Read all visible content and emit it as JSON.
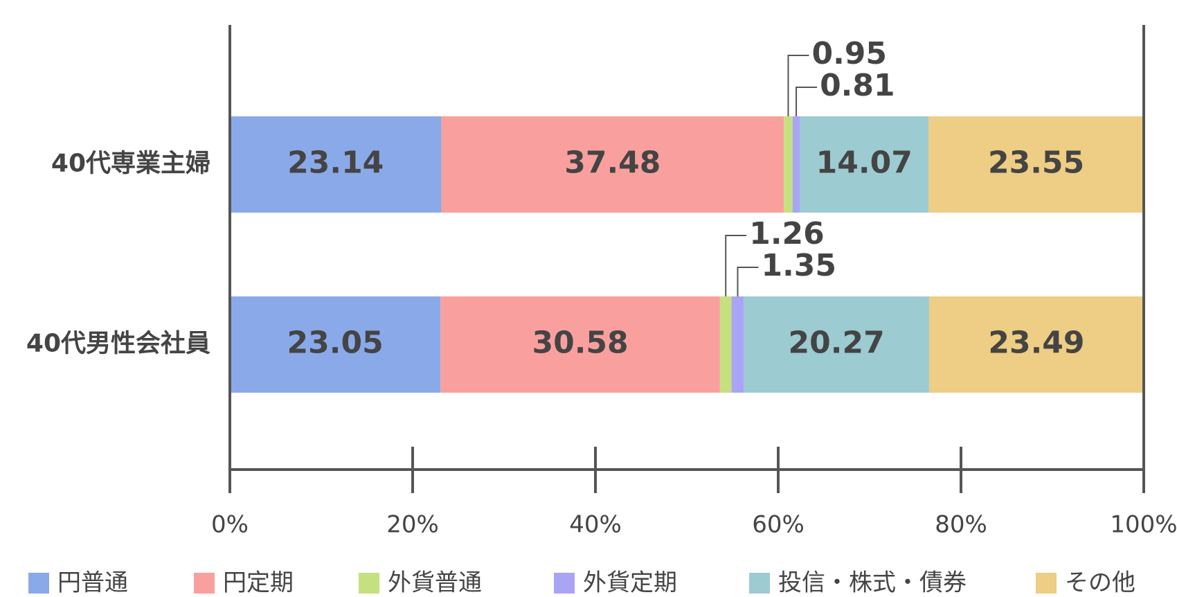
{
  "chart_data": {
    "type": "stacked-bar-horizontal",
    "categories": [
      "40代専業主婦",
      "40代男性会社員"
    ],
    "series": [
      {
        "name": "円普通",
        "color": "#8aa9e8",
        "values": [
          23.14,
          23.05
        ]
      },
      {
        "name": "円定期",
        "color": "#f9a09e",
        "values": [
          37.48,
          30.58
        ]
      },
      {
        "name": "外貨普通",
        "color": "#c5e07f",
        "values": [
          0.95,
          1.26
        ]
      },
      {
        "name": "外貨定期",
        "color": "#aaa4f5",
        "values": [
          0.81,
          1.35
        ]
      },
      {
        "name": "投信・株式・債券",
        "color": "#9ccbd1",
        "values": [
          14.07,
          20.27
        ]
      },
      {
        "name": "その他",
        "color": "#eecd84",
        "values": [
          23.55,
          23.49
        ]
      }
    ],
    "xlim": [
      0,
      100
    ],
    "xticks": [
      {
        "value": 0,
        "label": "0%"
      },
      {
        "value": 20,
        "label": "20%"
      },
      {
        "value": 40,
        "label": "40%"
      },
      {
        "value": 60,
        "label": "60%"
      },
      {
        "value": 80,
        "label": "80%"
      },
      {
        "value": 100,
        "label": "100%"
      }
    ],
    "legend": "bottom"
  }
}
